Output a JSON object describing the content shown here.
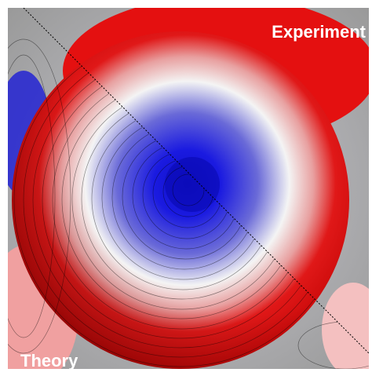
{
  "labels": {
    "experiment": "Experiment",
    "theory": "Theory"
  }
}
